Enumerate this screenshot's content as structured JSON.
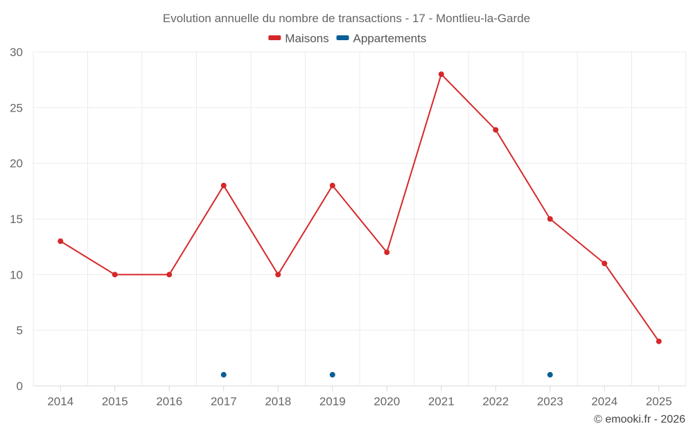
{
  "chart_data": {
    "type": "line",
    "title": "Evolution annuelle du nombre de transactions - 17 - Montlieu-la-Garde",
    "categories": [
      "2014",
      "2015",
      "2016",
      "2017",
      "2018",
      "2019",
      "2020",
      "2021",
      "2022",
      "2023",
      "2024",
      "2025"
    ],
    "ylim": [
      0,
      30
    ],
    "yticks": [
      0,
      5,
      10,
      15,
      20,
      25,
      30
    ],
    "grid": true,
    "legend_position": "top-center",
    "series": [
      {
        "name": "Maisons",
        "color": "#d62728",
        "style": "line",
        "values": [
          13,
          10,
          10,
          18,
          10,
          18,
          12,
          28,
          23,
          15,
          11,
          4
        ]
      },
      {
        "name": "Appartements",
        "color": "#0a5f97",
        "style": "points",
        "values": [
          null,
          null,
          null,
          1,
          null,
          1,
          null,
          null,
          null,
          1,
          null,
          null
        ]
      }
    ],
    "credit": "© emooki.fr - 2026"
  }
}
